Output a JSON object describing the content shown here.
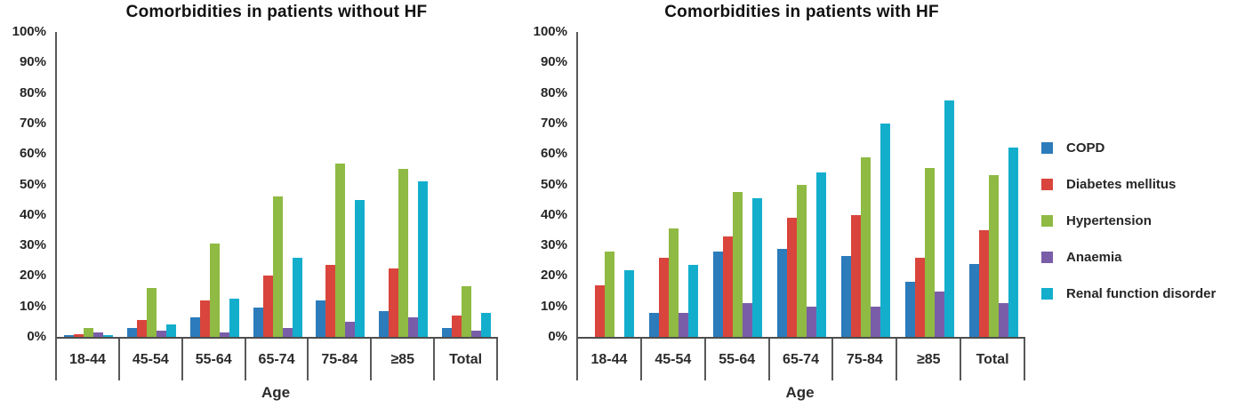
{
  "colors": {
    "axis": "#595959",
    "text": "#262626",
    "copd_blue": "#2C7BBB",
    "diabetes_red": "#D9453C",
    "hypertension_green": "#8FBA43",
    "anaemia_purple": "#7A5DA8",
    "renal_cyan": "#14AECD"
  },
  "y_ticks": [
    "100%",
    "90%",
    "80%",
    "70%",
    "60%",
    "50%",
    "40%",
    "30%",
    "20%",
    "10%",
    "0%"
  ],
  "legend": {
    "items": [
      {
        "label": "COPD",
        "color": "#2C7BBB"
      },
      {
        "label": "Diabetes mellitus",
        "color": "#D9453C"
      },
      {
        "label": "Hypertension",
        "color": "#8FBA43"
      },
      {
        "label": "Anaemia",
        "color": "#7A5DA8"
      },
      {
        "label": "Renal function disorder",
        "color": "#14AECD"
      }
    ]
  },
  "chart_data": [
    {
      "type": "bar",
      "title": "Comorbidities in patients without HF",
      "xlabel": "Age",
      "ylabel": "",
      "ylim": [
        0,
        100
      ],
      "y_tick_step": 10,
      "grid": false,
      "legend_position": "right",
      "categories": [
        "18-44",
        "45-54",
        "55-64",
        "65-74",
        "75-84",
        "≥85",
        "Total"
      ],
      "series": [
        {
          "name": "COPD",
          "color": "#2C7BBB",
          "values": [
            0.5,
            3,
            6.5,
            9.5,
            12,
            8.5,
            3
          ]
        },
        {
          "name": "Diabetes mellitus",
          "color": "#D9453C",
          "values": [
            1,
            5.5,
            12,
            20,
            23.5,
            22.5,
            7
          ]
        },
        {
          "name": "Hypertension",
          "color": "#8FBA43",
          "values": [
            3,
            16,
            30.5,
            46,
            57,
            55,
            16.5
          ]
        },
        {
          "name": "Anaemia",
          "color": "#7A5DA8",
          "values": [
            1.5,
            2,
            1.5,
            3,
            5,
            6.5,
            2
          ]
        },
        {
          "name": "Renal function disorder",
          "color": "#14AECD",
          "values": [
            0.5,
            4,
            12.5,
            26,
            45,
            51,
            8
          ]
        }
      ]
    },
    {
      "type": "bar",
      "title": "Comorbidities in patients with HF",
      "xlabel": "Age",
      "ylabel": "",
      "ylim": [
        0,
        100
      ],
      "y_tick_step": 10,
      "grid": false,
      "legend_position": "right",
      "categories": [
        "18-44",
        "45-54",
        "55-64",
        "65-74",
        "75-84",
        "≥85",
        "Total"
      ],
      "series": [
        {
          "name": "COPD",
          "color": "#2C7BBB",
          "values": [
            0,
            8,
            28,
            29,
            26.5,
            18,
            24
          ]
        },
        {
          "name": "Diabetes mellitus",
          "color": "#D9453C",
          "values": [
            17,
            26,
            33,
            39,
            40,
            26,
            35
          ]
        },
        {
          "name": "Hypertension",
          "color": "#8FBA43",
          "values": [
            28,
            35.5,
            47.5,
            50,
            59,
            55.5,
            53
          ]
        },
        {
          "name": "Anaemia",
          "color": "#7A5DA8",
          "values": [
            0,
            8,
            11,
            10,
            10,
            15,
            11
          ]
        },
        {
          "name": "Renal function disorder",
          "color": "#14AECD",
          "values": [
            22,
            23.5,
            45.5,
            54,
            70,
            77.5,
            62
          ]
        }
      ]
    }
  ]
}
